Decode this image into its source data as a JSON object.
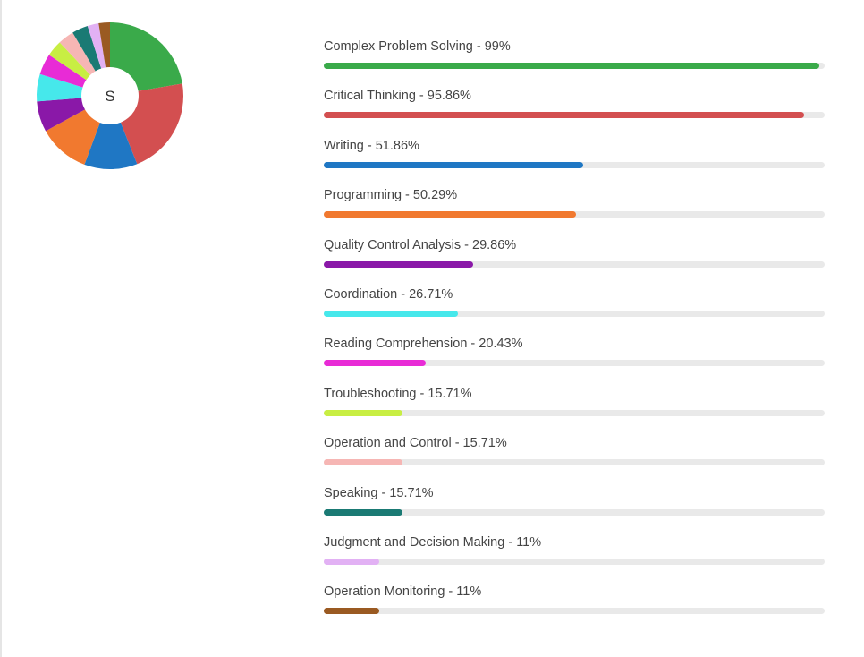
{
  "chart_data": {
    "type": "bar",
    "orientation": "horizontal",
    "center_label": "S",
    "ylim": [
      0,
      100
    ],
    "categories": [
      "Complex Problem Solving - 99%",
      "Critical Thinking - 95.86%",
      "Writing - 51.86%",
      "Programming - 50.29%",
      "Quality Control Analysis - 29.86%",
      "Coordination - 26.71%",
      "Reading Comprehension - 20.43%",
      "Troubleshooting - 15.71%",
      "Operation and Control - 15.71%",
      "Speaking - 15.71%",
      "Judgment and Decision Making - 11%",
      "Operation Monitoring - 11%"
    ],
    "values": [
      99,
      95.86,
      51.86,
      50.29,
      29.86,
      26.71,
      20.43,
      15.71,
      15.71,
      15.71,
      11,
      11
    ],
    "colors": [
      "#3aaa4a",
      "#d34f50",
      "#1f77c4",
      "#f1792f",
      "#8a18a8",
      "#46e8eb",
      "#e82bd6",
      "#c8ee43",
      "#f6b6b4",
      "#1a7a74",
      "#e2b1f4",
      "#9a5a22"
    ],
    "track_color": "#e9e9e9"
  }
}
